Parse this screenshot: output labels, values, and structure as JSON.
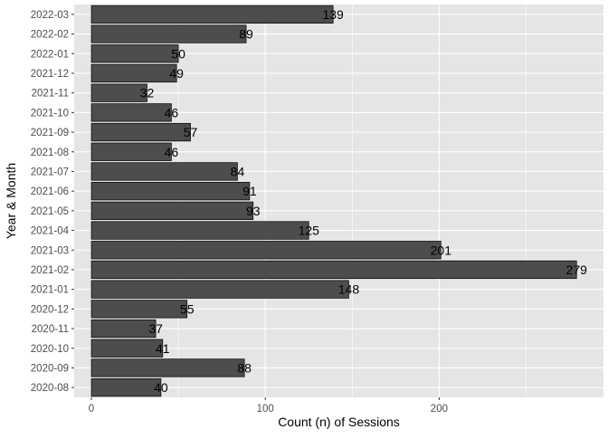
{
  "chart_data": {
    "type": "bar",
    "orientation": "horizontal",
    "xlabel": "Count (n) of Sessions",
    "ylabel": "Year & Month",
    "xlim": [
      0,
      290
    ],
    "xticks": [
      0,
      100,
      200
    ],
    "grid": true,
    "colors": {
      "panel_bg": "#e5e5e5",
      "grid_major": "#ffffff",
      "bar_fill": "#4d4d4d",
      "bar_stroke": "#000000",
      "tick_text": "#4d4d4d",
      "label_text": "#000000"
    },
    "categories": [
      "2022-03",
      "2022-02",
      "2022-01",
      "2021-12",
      "2021-11",
      "2021-10",
      "2021-09",
      "2021-08",
      "2021-07",
      "2021-06",
      "2021-05",
      "2021-04",
      "2021-03",
      "2021-02",
      "2021-01",
      "2020-12",
      "2020-11",
      "2020-10",
      "2020-09",
      "2020-08"
    ],
    "values": [
      139,
      89,
      50,
      49,
      32,
      46,
      57,
      46,
      84,
      91,
      93,
      125,
      201,
      279,
      148,
      55,
      37,
      41,
      88,
      40
    ]
  }
}
